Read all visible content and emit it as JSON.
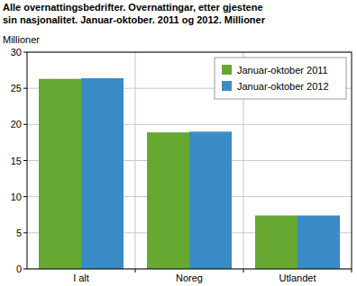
{
  "chart_data": {
    "type": "bar",
    "title": "Alle overnattingsbedrifter. Overnattingar, etter gjestene sin nasjonalitet. Januar-oktober. 2011 og 2012. Millioner",
    "y_label": "Millioner",
    "categories": [
      "I alt",
      "Noreg",
      "Utlandet"
    ],
    "series": [
      {
        "name": "Januar-oktober 2011",
        "color": "#66a832",
        "values": [
          26.3,
          18.9,
          7.4
        ]
      },
      {
        "name": "Januar-oktober 2012",
        "color": "#3a8cc6",
        "values": [
          26.4,
          19.0,
          7.4
        ]
      }
    ],
    "ylim": [
      0,
      30
    ],
    "yticks": [
      0,
      5,
      10,
      15,
      20,
      25,
      30
    ],
    "grid": true,
    "legend": "top-right"
  }
}
